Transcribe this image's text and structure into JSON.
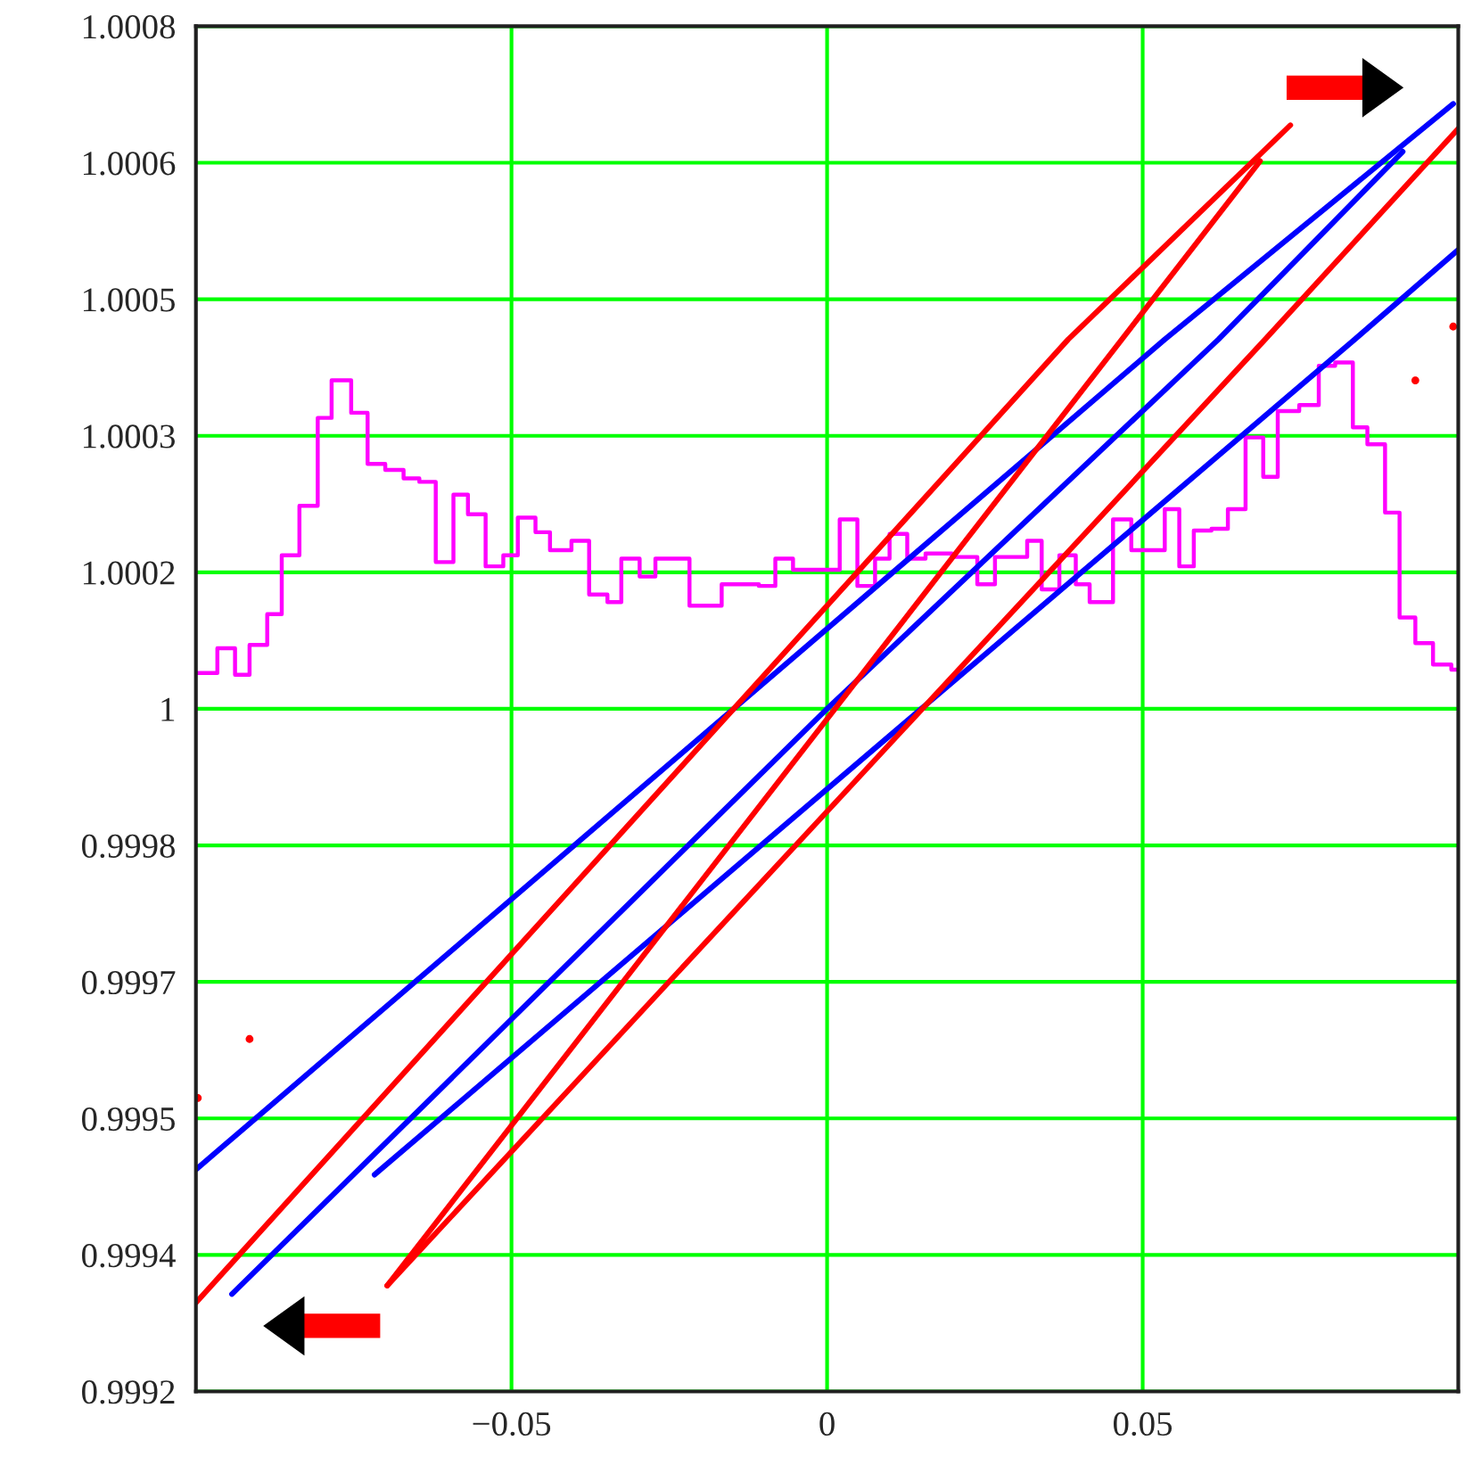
{
  "chart_data": {
    "type": "line",
    "xlim": [
      -0.1,
      0.1
    ],
    "ylim": [
      0.9992,
      1.0008
    ],
    "xticks": [
      {
        "value": -0.05,
        "label": "−0.05"
      },
      0,
      0.05
    ],
    "yticks": [
      0.9992,
      {
        "value": 0.99936,
        "label": "0.9994"
      },
      {
        "value": 0.99952,
        "label": "0.9995"
      },
      {
        "value": 0.99968,
        "label": "0.9997"
      },
      {
        "value": 0.99984,
        "label": "0.9998"
      },
      1,
      {
        "value": 1.00016,
        "label": "1.0002"
      },
      {
        "value": 1.00032,
        "label": "1.0003"
      },
      {
        "value": 1.00048,
        "label": "1.0005"
      },
      {
        "value": 1.00064,
        "label": "1.0006"
      },
      1.0008
    ],
    "grid": true,
    "series": [
      {
        "type": "step",
        "color": "#ff00ff",
        "x": [
          -0.1,
          -0.0966,
          -0.0938,
          -0.0915,
          -0.0887,
          -0.0864,
          -0.0836,
          -0.0807,
          -0.0785,
          -0.0754,
          -0.0728,
          -0.07,
          -0.0671,
          -0.0646,
          -0.062,
          -0.0592,
          -0.0569,
          -0.0541,
          -0.0513,
          -0.049,
          -0.0462,
          -0.0439,
          -0.0405,
          -0.0377,
          -0.0348,
          -0.0326,
          -0.0297,
          -0.0272,
          -0.0218,
          -0.0167,
          -0.0108,
          -0.0082,
          -0.0054,
          0.002,
          0.0048,
          0.0076,
          0.0099,
          0.0127,
          0.0156,
          0.0198,
          0.0238,
          0.0266,
          0.0317,
          0.034,
          0.0368,
          0.0394,
          0.0416,
          0.0453,
          0.0482,
          0.0535,
          0.0558,
          0.0581,
          0.0609,
          0.0635,
          0.0663,
          0.0691,
          0.0714,
          0.0748,
          0.0779,
          0.0805,
          0.0833,
          0.0856,
          0.0884,
          0.0907,
          0.0932,
          0.096,
          0.0989,
          0.1
        ],
        "values": [
          1.000042,
          1.000071,
          1.00004,
          1.000075,
          1.000111,
          1.00018,
          1.000238,
          1.000341,
          1.000385,
          1.000347,
          1.000287,
          1.00028,
          1.00027,
          1.000266,
          1.000172,
          1.000251,
          1.000228,
          1.000167,
          1.00018,
          1.000224,
          1.000207,
          1.000186,
          1.000197,
          1.000134,
          1.000125,
          1.000176,
          1.000155,
          1.000176,
          1.000121,
          1.000146,
          1.000144,
          1.000176,
          1.000163,
          1.000222,
          1.000144,
          1.000176,
          1.000205,
          1.000176,
          1.000182,
          1.000178,
          1.000146,
          1.000178,
          1.000197,
          1.00014,
          1.00018,
          1.000146,
          1.000125,
          1.000222,
          1.000186,
          1.000234,
          1.000167,
          1.000209,
          1.000211,
          1.000234,
          1.000318,
          1.000272,
          1.000349,
          1.000356,
          1.000402,
          1.000406,
          1.00033,
          1.00031,
          1.00023,
          1.000107,
          1.000077,
          1.000052,
          1.000046,
          1.000046
        ]
      },
      {
        "color": "#0000ff",
        "x": [
          -0.1,
          0.0535,
          0.0992
        ],
        "values": [
          0.99946,
          1.000433,
          1.000709
        ]
      },
      {
        "color": "#0000ff",
        "x": [
          -0.0943,
          0,
          0.062,
          0.0912
        ],
        "values": [
          0.999314,
          1,
          1.000433,
          1.000653
        ]
      },
      {
        "color": "#0000ff",
        "x": [
          -0.0717,
          0.0836,
          0.1
        ],
        "values": [
          0.999454,
          1.000433,
          1.000538
        ]
      },
      {
        "color": "#ff0000",
        "x": [
          -0.1,
          0.0382,
          0.0734
        ],
        "values": [
          0.999304,
          1.000433,
          1.000684
        ]
      },
      {
        "color": "#ff0000",
        "x": [
          -0.0697,
          0.0467,
          0.0686
        ],
        "values": [
          0.999324,
          1.000433,
          1.000642
        ]
      },
      {
        "color": "#ff0000",
        "x": [
          -0.0697,
          0.0694,
          0.1
        ],
        "values": [
          0.999324,
          1.000433,
          1.00068
        ]
      },
      {
        "type": "scatter",
        "color": "#ff0000",
        "x": [
          -0.0997,
          -0.0915,
          0.0932,
          0.0992
        ],
        "values": [
          0.999544,
          0.999613,
          1.000385,
          1.000448
        ]
      }
    ]
  }
}
